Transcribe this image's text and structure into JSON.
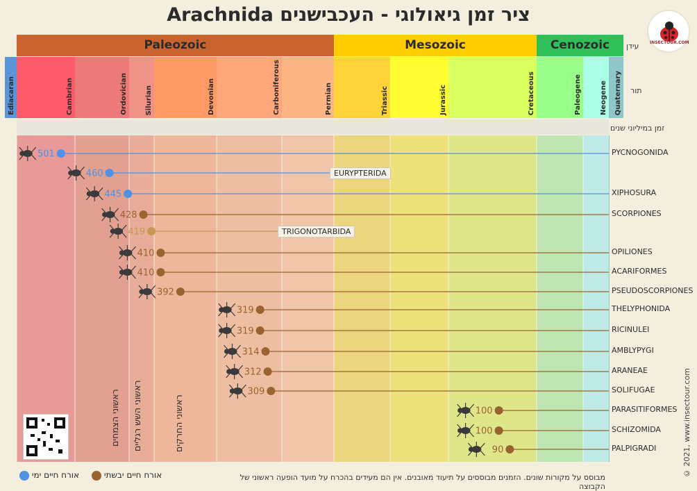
{
  "title": "ציר זמן גיאולוגי - העכבישנים Arachnida",
  "side_labels": {
    "era": "עידן",
    "period": "תור",
    "age": "זמן במיליוני שנים"
  },
  "logo_text": "INSECTOUR.COM",
  "copyright": "© 2021, www.insectour.com",
  "footnote": "מבוסס על מקורות שונים. הזמנים מבוססים על תיעוד מאובנים. אין הם מעידים בהכרח על מועד הופעה ראשוני של הקבוצה",
  "milestones": [
    "ראשוני הצמחים",
    "ראשוני השש רגליים",
    "ראשוני החרקים"
  ],
  "legend": {
    "terrestrial": "אורח חיים יבשתי",
    "marine": "אורח חיים ימי"
  },
  "colors": {
    "marine": "#4f91e6",
    "terrestrial": "#9a6431",
    "terrestrial_light": "#c7974f"
  },
  "chart_data": {
    "type": "scatter",
    "eras": [
      {
        "name": "Paleozoic",
        "start": 542,
        "end": 251,
        "color": "#c9642e"
      },
      {
        "name": "Mesozoic",
        "start": 251,
        "end": 65.5,
        "color": "#ffcc00"
      },
      {
        "name": "Cenozoic",
        "start": 65.5,
        "end": 0,
        "color": "#2fc05a"
      }
    ],
    "periods": [
      {
        "name": "Ediacaran",
        "color": "#5b95d8",
        "bg": "#9cbde6"
      },
      {
        "name": "Cambrian",
        "start": 542,
        "end": 488,
        "color": "#ff5c6b",
        "bg": "#e79a98"
      },
      {
        "name": "Ordovician",
        "start": 488,
        "end": 444,
        "color": "#eb7a78",
        "bg": "#e2a090"
      },
      {
        "name": "Silurian",
        "start": 444,
        "end": 416,
        "color": "#f09285",
        "bg": "#e8ad98"
      },
      {
        "name": "Devonian",
        "start": 416,
        "end": 359,
        "color": "#ff9966",
        "bg": "#eeb79b"
      },
      {
        "name": "Carboniferous",
        "start": 359,
        "end": 299,
        "color": "#ffa77a",
        "bg": "#eebea2"
      },
      {
        "name": "Permian",
        "start": 299,
        "end": 251,
        "color": "#ffb686",
        "bg": "#efc6aa"
      },
      {
        "name": "Triassic",
        "start": 251,
        "end": 200,
        "color": "#ffd43b",
        "bg": "#ebd67e"
      },
      {
        "name": "Jurassic",
        "start": 200,
        "end": 146,
        "color": "#ffff33",
        "bg": "#ece17a"
      },
      {
        "name": "Cretaceous",
        "start": 146,
        "end": 65.5,
        "color": "#d9ff5e",
        "bg": "#dfe68a"
      },
      {
        "name": "Paleogene",
        "start": 65.5,
        "end": 23,
        "color": "#99ff8a",
        "bg": "#bfe6b2"
      },
      {
        "name": "Neogene",
        "start": 23,
        "end": 2.6,
        "color": "#adffe8",
        "bg": "#bfe9e4"
      },
      {
        "name": "Quaternary",
        "color": "#8fc7c9",
        "bg": "#8fc7c9"
      }
    ],
    "age_ticks": [
      "542",
      "488",
      "444",
      "416",
      "359",
      "299",
      "251",
      "200",
      "146",
      "65.5",
      "23"
    ],
    "series": [
      {
        "name": "PYCNOGONIDA",
        "value": 501,
        "label": "501",
        "habitat": "marine"
      },
      {
        "name": "EURYPTERIDA",
        "value": 460,
        "label": "460",
        "habitat": "marine",
        "extinct": true,
        "end": 251
      },
      {
        "name": "XIPHOSURA",
        "value": 445,
        "label": "445",
        "habitat": "marine"
      },
      {
        "name": "SCORPIONES",
        "value": 428,
        "label": "428",
        "habitat": "terrestrial"
      },
      {
        "name": "TRIGONOTARBIDA",
        "value": 419,
        "label": "419",
        "habitat": "terrestrial",
        "extinct": true,
        "end": 299
      },
      {
        "name": "OPILIONES",
        "value": 410,
        "label": "410",
        "habitat": "terrestrial"
      },
      {
        "name": "ACARIFORMES",
        "value": 410,
        "label": "410",
        "habitat": "terrestrial"
      },
      {
        "name": "PSEUDOSCORPIONES",
        "value": 392,
        "label": "392",
        "habitat": "terrestrial"
      },
      {
        "name": "THELYPHONIDA",
        "value": 319,
        "label": "319",
        "habitat": "terrestrial"
      },
      {
        "name": "RICINULEI",
        "value": 319,
        "label": "319",
        "habitat": "terrestrial"
      },
      {
        "name": "AMBLYPYGI",
        "value": 314,
        "label": "314",
        "habitat": "terrestrial"
      },
      {
        "name": "ARANEAE",
        "value": 312,
        "label": "312",
        "habitat": "terrestrial"
      },
      {
        "name": "SOLIFUGAE",
        "value": 309,
        "label": "309",
        "habitat": "terrestrial"
      },
      {
        "name": "PARASITIFORMES",
        "value": 100,
        "label": "100",
        "habitat": "terrestrial"
      },
      {
        "name": "SCHIZOMIDA",
        "value": 100,
        "label": "100",
        "habitat": "terrestrial"
      },
      {
        "name": "PALPIGRADI",
        "value": 90,
        "label": "90",
        "habitat": "terrestrial"
      }
    ]
  }
}
